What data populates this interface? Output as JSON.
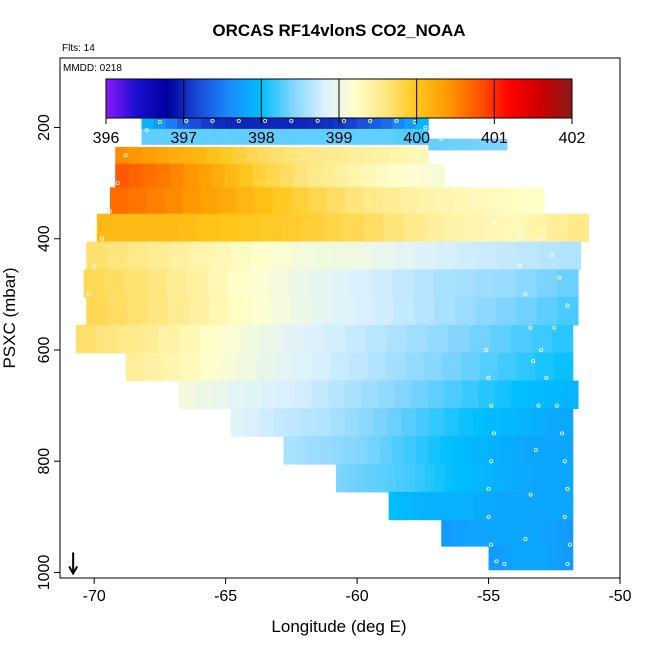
{
  "chart_data": {
    "type": "heatmap",
    "title": "ORCAS RF14vlonS CO2_NOAA",
    "flights_label": "Flts: 14",
    "date_label": "MMDD: 0218",
    "xlabel": "Longitude (deg E)",
    "ylabel": "PSXC (mbar)",
    "xlim": [
      -71.3,
      -50
    ],
    "ylim": [
      1010,
      75
    ],
    "x_ticks": [
      -70,
      -65,
      -60,
      -55,
      -50
    ],
    "y_ticks": [
      200,
      400,
      600,
      800,
      1000
    ],
    "colorbar": {
      "min": 396,
      "max": 402,
      "ticks": [
        396,
        397,
        398,
        399,
        400,
        401,
        402
      ],
      "colors": [
        "#8c1aff",
        "#1a0dcc",
        "#0000a0",
        "#1a4dd9",
        "#1a8cff",
        "#00bfff",
        "#80d4ff",
        "#d9f0ff",
        "#ffffcc",
        "#ffe680",
        "#ffc61a",
        "#ff9900",
        "#ff5500",
        "#ff0000",
        "#cc0000",
        "#8b1a1a"
      ]
    },
    "wind_arrow": {
      "lon": -70.8,
      "p": 1000
    },
    "rows": [
      {
        "p": 185,
        "west": -68.2,
        "east": -57.3,
        "values": [
          398.0,
          397.3,
          397.0,
          397.0,
          397.0,
          397.1,
          397.4,
          398.0
        ]
      },
      {
        "p": 220,
        "west": -68.2,
        "east": -57.3,
        "values": [
          398.3,
          398.3,
          398.3,
          398.3,
          398.3,
          398.3,
          398.3,
          398.2
        ]
      },
      {
        "p": 230,
        "west": -57.3,
        "east": -54.3,
        "values": [
          398.3,
          398.4
        ]
      },
      {
        "p": 245,
        "west": -69.2,
        "east": -57.3,
        "values": [
          400.5,
          400.3,
          400.1,
          399.8,
          399.6,
          399.5,
          399.4,
          399.3
        ]
      },
      {
        "p": 285,
        "west": -69.2,
        "east": -56.7,
        "values": [
          400.8,
          400.6,
          400.3,
          399.9,
          399.6,
          399.4,
          399.2,
          399.1
        ]
      },
      {
        "p": 330,
        "west": -69.4,
        "east": -52.9,
        "values": [
          400.7,
          400.5,
          400.2,
          399.9,
          399.6,
          399.4,
          399.3,
          399.2
        ]
      },
      {
        "p": 380,
        "west": -69.9,
        "east": -51.2,
        "values": [
          400.1,
          400.1,
          400.0,
          399.9,
          399.7,
          399.4,
          399.3,
          399.6
        ]
      },
      {
        "p": 430,
        "west": -70.3,
        "east": -51.5,
        "values": [
          399.7,
          399.5,
          399.3,
          399.1,
          399.0,
          398.8,
          398.7,
          398.6
        ]
      },
      {
        "p": 480,
        "west": -70.4,
        "east": -51.6,
        "values": [
          399.8,
          399.6,
          399.3,
          399.0,
          398.8,
          398.6,
          398.5,
          398.3
        ]
      },
      {
        "p": 530,
        "west": -70.3,
        "east": -51.6,
        "values": [
          399.8,
          399.6,
          399.3,
          399.0,
          398.8,
          398.6,
          398.4,
          398.2
        ]
      },
      {
        "p": 580,
        "west": -70.7,
        "east": -51.8,
        "values": [
          399.7,
          399.5,
          399.2,
          398.9,
          398.7,
          398.5,
          398.3,
          398.1
        ]
      },
      {
        "p": 630,
        "west": -68.8,
        "east": -51.8,
        "values": [
          399.5,
          399.3,
          399.0,
          398.8,
          398.6,
          398.4,
          398.2,
          398.0
        ]
      },
      {
        "p": 680,
        "west": -66.8,
        "east": -51.6,
        "values": [
          399.1,
          398.9,
          398.8,
          398.6,
          398.4,
          398.2,
          398.0,
          397.9
        ]
      },
      {
        "p": 730,
        "west": -64.8,
        "east": -51.8,
        "values": [
          398.9,
          398.7,
          398.6,
          398.4,
          398.2,
          398.0,
          397.9,
          397.8
        ]
      },
      {
        "p": 780,
        "west": -62.8,
        "east": -51.8,
        "values": [
          398.6,
          398.5,
          398.4,
          398.2,
          398.0,
          397.9,
          397.8,
          397.8
        ]
      },
      {
        "p": 830,
        "west": -60.8,
        "east": -51.8,
        "values": [
          398.4,
          398.3,
          398.2,
          398.0,
          397.9,
          397.8,
          397.8
        ]
      },
      {
        "p": 880,
        "west": -58.8,
        "east": -51.8,
        "values": [
          398.0,
          397.9,
          397.9,
          397.8,
          397.8,
          397.8
        ]
      },
      {
        "p": 930,
        "west": -56.8,
        "east": -51.8,
        "values": [
          397.7,
          397.8,
          397.8,
          397.8,
          397.7
        ]
      },
      {
        "p": 975,
        "west": -55.0,
        "east": -51.8,
        "values": [
          397.7,
          397.8,
          397.8,
          397.7
        ]
      }
    ],
    "flight_track": [
      [
        -57.4,
        200
      ],
      [
        -57.8,
        190
      ],
      [
        -58.5,
        188
      ],
      [
        -59.5,
        188
      ],
      [
        -60.5,
        188
      ],
      [
        -61.5,
        188
      ],
      [
        -62.5,
        188
      ],
      [
        -63.5,
        188
      ],
      [
        -64.5,
        188
      ],
      [
        -65.5,
        188
      ],
      [
        -66.5,
        188
      ],
      [
        -67.5,
        190
      ],
      [
        -68.0,
        205
      ],
      [
        -68.5,
        225
      ],
      [
        -68.8,
        250
      ],
      [
        -69.1,
        300
      ],
      [
        -69.4,
        350
      ],
      [
        -69.7,
        400
      ],
      [
        -70.0,
        450
      ],
      [
        -70.2,
        500
      ],
      [
        -56.8,
        220
      ],
      [
        -56.5,
        250
      ],
      [
        -56.0,
        290
      ],
      [
        -55.5,
        330
      ],
      [
        -54.8,
        370
      ],
      [
        -53.8,
        395
      ],
      [
        -53.0,
        400
      ],
      [
        -52.6,
        430
      ],
      [
        -52.3,
        470
      ],
      [
        -52.0,
        520
      ],
      [
        -52.5,
        560
      ],
      [
        -53.0,
        600
      ],
      [
        -52.8,
        650
      ],
      [
        -52.4,
        700
      ],
      [
        -52.2,
        750
      ],
      [
        -52.1,
        800
      ],
      [
        -52.0,
        850
      ],
      [
        -52.1,
        900
      ],
      [
        -51.9,
        950
      ],
      [
        -52.0,
        985
      ],
      [
        -55.1,
        600
      ],
      [
        -55.0,
        650
      ],
      [
        -54.9,
        700
      ],
      [
        -54.8,
        750
      ],
      [
        -54.9,
        800
      ],
      [
        -55.0,
        850
      ],
      [
        -55.0,
        900
      ],
      [
        -54.9,
        950
      ],
      [
        -54.7,
        980
      ],
      [
        -54.4,
        985
      ],
      [
        -53.8,
        450
      ],
      [
        -53.6,
        500
      ],
      [
        -53.4,
        560
      ],
      [
        -53.3,
        620
      ],
      [
        -53.1,
        700
      ],
      [
        -53.2,
        780
      ],
      [
        -53.4,
        860
      ],
      [
        -53.6,
        940
      ]
    ]
  }
}
